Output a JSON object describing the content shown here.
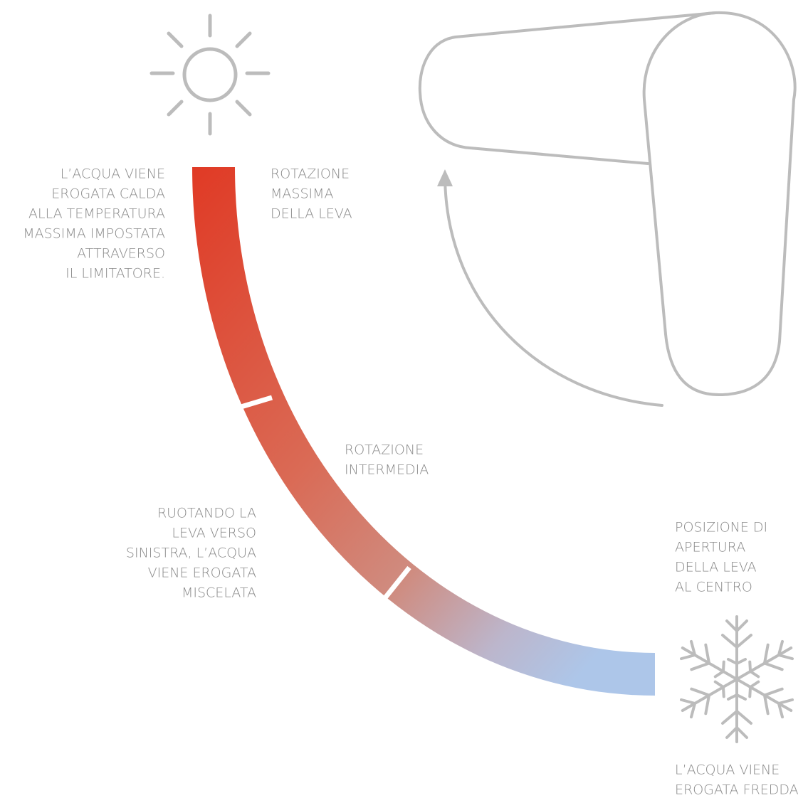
{
  "labels": [
    {
      "lines": [
        "L’ACQUA VIENE",
        "EROGATA CALDA",
        "ALLA TEMPERATURA",
        "MASSIMA IMPOSTATA",
        "ATTRAVERSO",
        "IL LIMITATORE."
      ]
    },
    {
      "lines": [
        "ROTAZIONE",
        "MASSIMA",
        "DELLA LEVA"
      ]
    },
    {
      "lines": [
        "ROTAZIONE",
        "INTERMEDIA"
      ]
    },
    {
      "lines": [
        "RUOTANDO LA",
        "LEVA VERSO",
        "SINISTRA, L’ACQUA",
        "VIENE EROGATA",
        "MISCELATA"
      ]
    },
    {
      "lines": [
        "POSIZIONE DI",
        "APERTURA",
        "DELLA LEVA",
        "AL CENTRO"
      ]
    },
    {
      "lines": [
        "L’ACQUA VIENE",
        "EROGATA FREDDA"
      ]
    }
  ]
}
